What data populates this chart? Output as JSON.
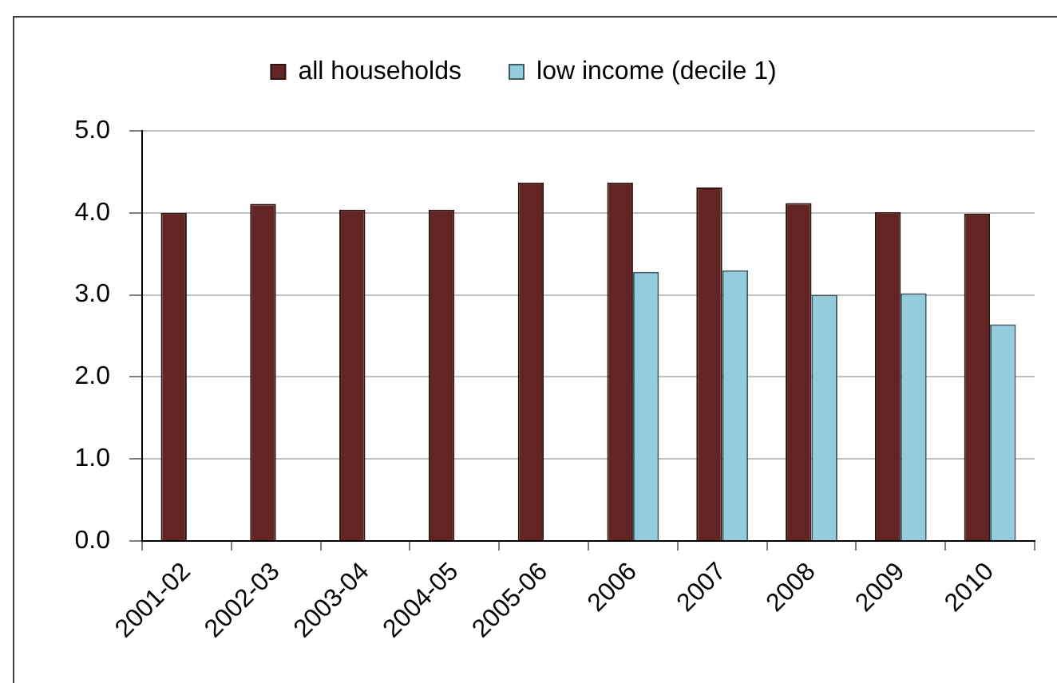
{
  "chart_data": {
    "type": "bar",
    "categories": [
      "2001-02",
      "2002-03",
      "2003-04",
      "2004-05",
      "2005-06",
      "2006",
      "2007",
      "2008",
      "2009",
      "2010"
    ],
    "series": [
      {
        "name": "all households",
        "color": "#632523",
        "values": [
          4.0,
          4.11,
          4.04,
          4.04,
          4.37,
          4.37,
          4.31,
          4.12,
          4.01,
          3.99
        ]
      },
      {
        "name": "low income (decile 1)",
        "color": "#93cddd",
        "values": [
          null,
          null,
          null,
          null,
          null,
          3.28,
          3.3,
          3.0,
          3.02,
          2.64
        ]
      }
    ],
    "ylim": [
      0,
      5
    ],
    "yticks": [
      {
        "value": 0,
        "label": "0.0"
      },
      {
        "value": 1,
        "label": "1.0"
      },
      {
        "value": 2,
        "label": "2.0"
      },
      {
        "value": 3,
        "label": "3.0"
      },
      {
        "value": 4,
        "label": "4.0"
      },
      {
        "value": 5,
        "label": "5.0"
      }
    ],
    "grid": "y",
    "legend": "top"
  }
}
